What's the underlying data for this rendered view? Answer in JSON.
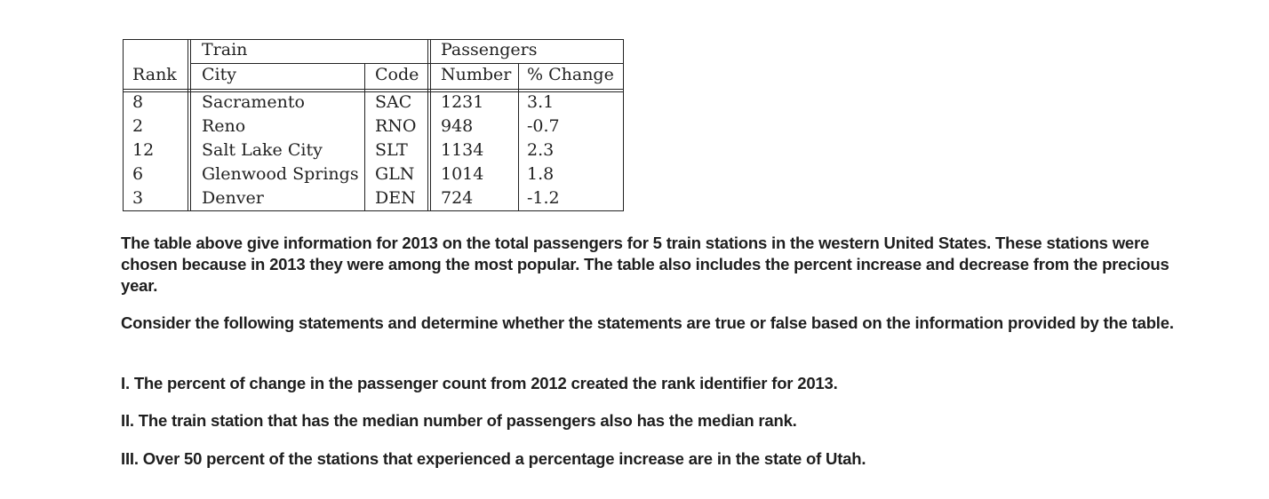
{
  "table": {
    "group_headers": {
      "train": "Train",
      "passengers": "Passengers"
    },
    "columns": [
      "Rank",
      "City",
      "Code",
      "Number",
      "% Change"
    ],
    "rows": [
      [
        "8",
        "Sacramento",
        "SAC",
        "1231",
        "3.1"
      ],
      [
        "2",
        "Reno",
        "RNO",
        "948",
        "-0.7"
      ],
      [
        "12",
        "Salt Lake City",
        "SLT",
        "1134",
        "2.3"
      ],
      [
        "6",
        "Glenwood Springs",
        "GLN",
        "1014",
        "1.8"
      ],
      [
        "3",
        "Denver",
        "DEN",
        "724",
        "-1.2"
      ]
    ]
  },
  "paragraphs": [
    "The table above give information for 2013 on the total passengers for 5 train stations in the western United States. These stations were chosen because in 2013 they were among the most popular. The table also includes the percent increase and decrease from the precious year.",
    "Consider the following statements and determine whether the statements are true or false based on the information provided by the table."
  ],
  "statements": [
    "I. The percent of change in the passenger count from 2012 created the rank identifier for 2013.",
    "II. The train station that has the median number of passengers also has the median rank.",
    "III. Over 50 percent of the stations that experienced a percentage increase are in the state of Utah."
  ]
}
